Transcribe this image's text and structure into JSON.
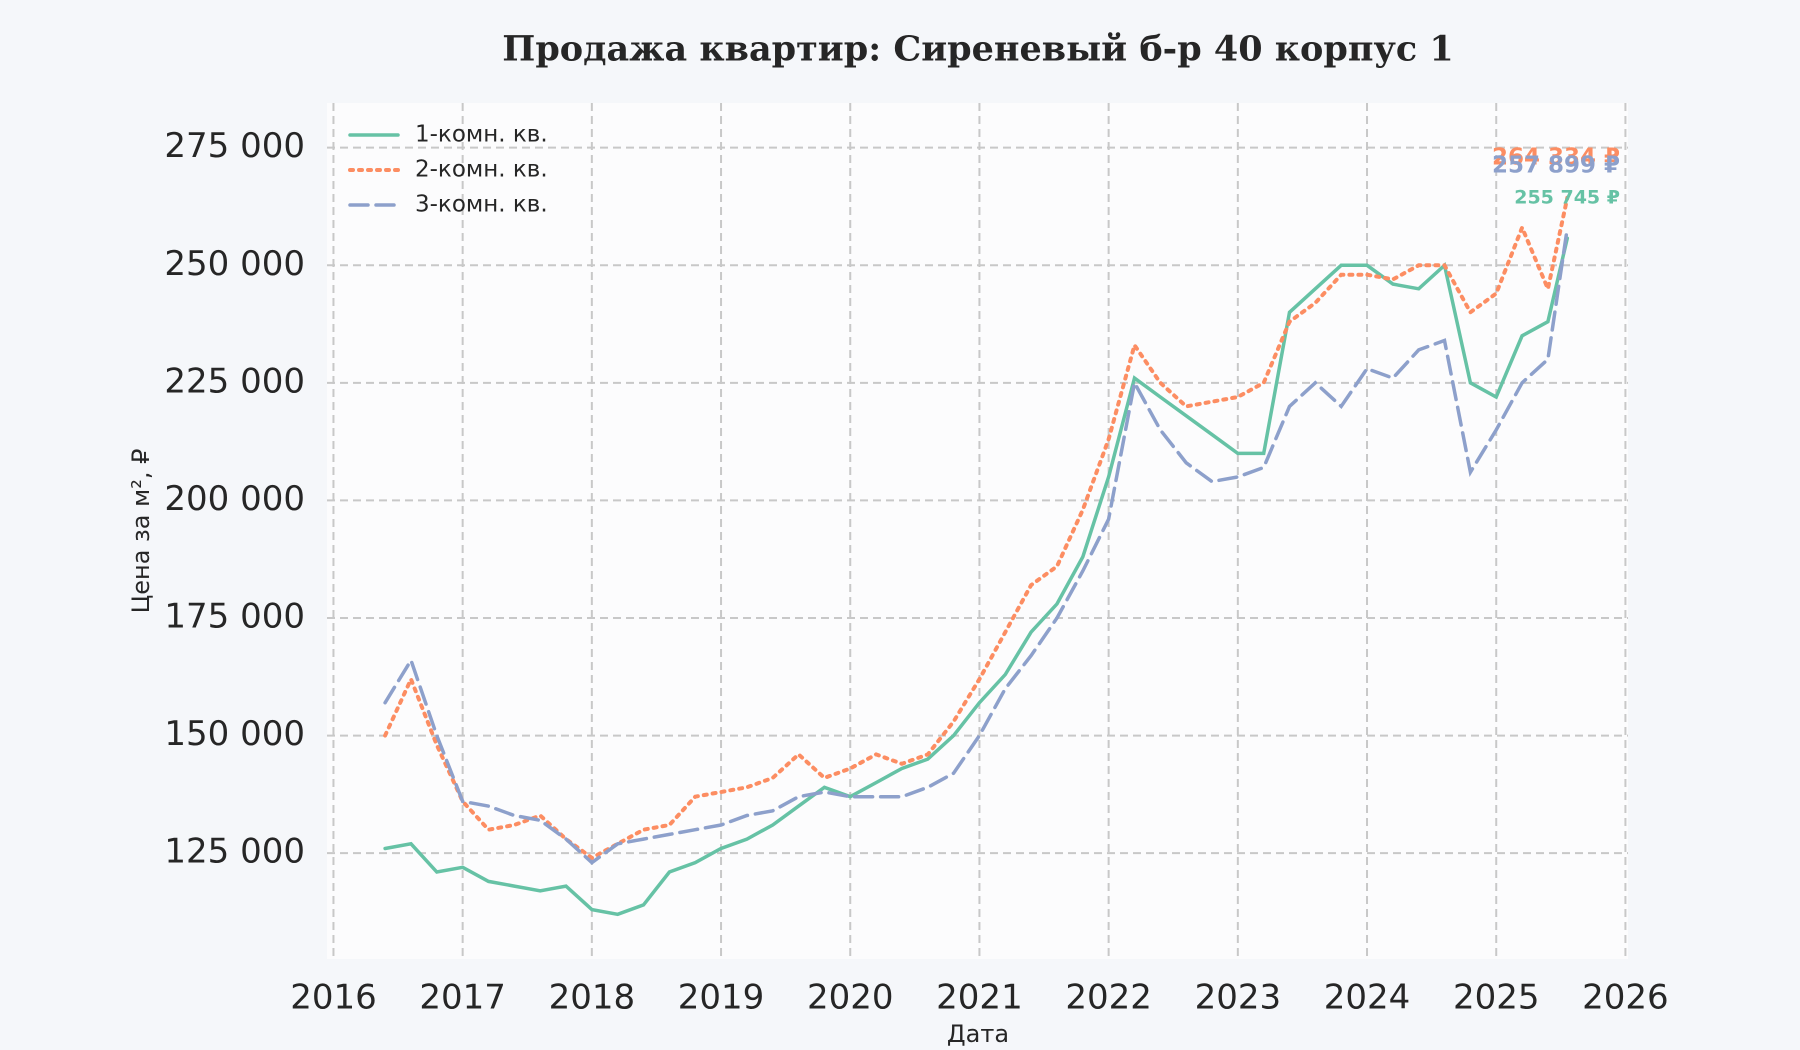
{
  "chart_data": {
    "type": "line",
    "title": "Продажа квартир: Сиреневый б-р 40 корпус 1",
    "x_label": "Дата",
    "y_label": "Цена за м², ₽",
    "x": [
      2016.4,
      2016.6,
      2016.8,
      2017.0,
      2017.2,
      2017.4,
      2017.6,
      2017.8,
      2018.0,
      2018.2,
      2018.4,
      2018.6,
      2018.8,
      2019.0,
      2019.2,
      2019.4,
      2019.6,
      2019.8,
      2020.0,
      2020.2,
      2020.4,
      2020.6,
      2020.8,
      2021.0,
      2021.2,
      2021.4,
      2021.6,
      2021.8,
      2022.0,
      2022.2,
      2022.4,
      2022.6,
      2022.8,
      2023.0,
      2023.2,
      2023.4,
      2023.6,
      2023.8,
      2024.0,
      2024.2,
      2024.4,
      2024.6,
      2024.8,
      2025.0,
      2025.2,
      2025.4,
      2025.55
    ],
    "series": [
      {
        "name": "1-комн. кв.",
        "color": "#66c2a5",
        "dash": "solid",
        "values": [
          126000,
          127000,
          121000,
          122000,
          119000,
          118000,
          117000,
          118000,
          113000,
          112000,
          114000,
          121000,
          123000,
          126000,
          128000,
          131000,
          135000,
          139000,
          137000,
          140000,
          143000,
          145000,
          150000,
          157000,
          163000,
          172000,
          178000,
          188000,
          205000,
          226000,
          222000,
          218000,
          214000,
          210000,
          210000,
          240000,
          245000,
          250000,
          250000,
          246000,
          245000,
          250000,
          225000,
          222000,
          235000,
          238000,
          255745
        ],
        "value_labels": [
          null,
          null,
          null,
          null,
          null,
          null,
          null,
          null,
          null,
          null,
          null,
          null,
          null,
          null,
          null,
          null,
          null,
          null,
          null,
          null,
          null,
          null,
          null,
          null,
          null,
          null,
          null,
          null,
          null,
          null,
          null,
          null,
          null,
          null,
          null,
          null,
          null,
          null,
          null,
          null,
          null,
          null,
          null,
          null,
          null,
          null,
          "255 745 ₽"
        ]
      },
      {
        "name": "2-комн. кв.",
        "color": "#fc8d62",
        "dash": "dotted",
        "values": [
          150000,
          162000,
          148000,
          136000,
          130000,
          131000,
          133000,
          128000,
          124000,
          127000,
          130000,
          131000,
          137000,
          138000,
          139000,
          141000,
          146000,
          141000,
          143000,
          146000,
          144000,
          146000,
          153000,
          162000,
          172000,
          182000,
          186000,
          198000,
          213000,
          233000,
          225000,
          220000,
          221000,
          222000,
          225000,
          238000,
          242000,
          248000,
          248000,
          247000,
          250000,
          250000,
          240000,
          244000,
          258000,
          245000,
          264334
        ],
        "value_labels": [
          null,
          null,
          null,
          null,
          null,
          null,
          null,
          null,
          null,
          null,
          null,
          null,
          null,
          null,
          null,
          null,
          null,
          null,
          null,
          null,
          null,
          null,
          null,
          null,
          null,
          null,
          null,
          null,
          null,
          null,
          null,
          null,
          null,
          null,
          null,
          null,
          null,
          null,
          null,
          null,
          null,
          null,
          null,
          null,
          null,
          null,
          "264 334 ₽"
        ]
      },
      {
        "name": "3-комн. кв.",
        "color": "#8da0cb",
        "dash": "dashed",
        "values": [
          157000,
          166000,
          150000,
          136000,
          135000,
          133000,
          132000,
          128000,
          123000,
          127000,
          128000,
          129000,
          130000,
          131000,
          133000,
          134000,
          137000,
          138000,
          137000,
          137000,
          137000,
          139000,
          142000,
          150000,
          160000,
          167000,
          175000,
          185000,
          196000,
          225000,
          215000,
          208000,
          204000,
          205000,
          207000,
          220000,
          225000,
          220000,
          228000,
          226000,
          232000,
          234000,
          206000,
          215000,
          225000,
          230000,
          257899
        ],
        "value_labels": [
          null,
          null,
          null,
          null,
          null,
          null,
          null,
          null,
          null,
          null,
          null,
          null,
          null,
          null,
          null,
          null,
          null,
          null,
          null,
          null,
          null,
          null,
          null,
          null,
          null,
          null,
          null,
          null,
          null,
          null,
          null,
          null,
          null,
          null,
          null,
          null,
          null,
          null,
          null,
          null,
          null,
          null,
          null,
          null,
          null,
          null,
          "257 899 ₽"
        ]
      }
    ],
    "xlim": [
      2015.95,
      2026.02
    ],
    "xticks": [
      2016,
      2017,
      2018,
      2019,
      2020,
      2021,
      2022,
      2023,
      2024,
      2025,
      2026
    ],
    "ylim": [
      102500,
      284500
    ],
    "yticks": [
      {
        "value": 125000,
        "label": "125 000"
      },
      {
        "value": 150000,
        "label": "150 000"
      },
      {
        "value": 175000,
        "label": "175 000"
      },
      {
        "value": 200000,
        "label": "200 000"
      },
      {
        "value": 225000,
        "label": "225 000"
      },
      {
        "value": 250000,
        "label": "250 000"
      },
      {
        "value": 275000,
        "label": "275 000"
      }
    ],
    "grid": true,
    "legend": "upper left"
  }
}
